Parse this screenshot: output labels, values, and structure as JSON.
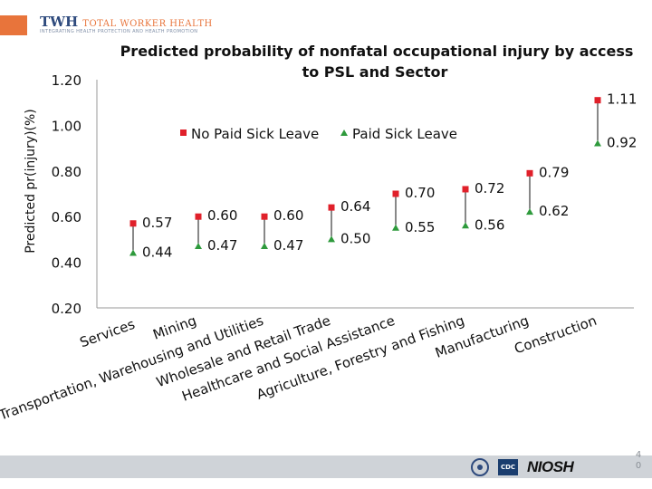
{
  "header": {
    "logo_main": "TWH",
    "logo_title": "TOTAL WORKER HEALTH",
    "logo_tagline": "INTEGRATING HEALTH PROTECTION AND HEALTH PROMOTION",
    "accent_color": "#e8743b",
    "brand_color": "#2e4a7d"
  },
  "footer": {
    "cdc_label": "CDC",
    "niosh_label": "NIOSH",
    "page_number": "4\n0"
  },
  "chart_data": {
    "type": "scatter",
    "title": "Predicted probability of nonfatal occupational injury by access to PSL and Sector",
    "ylabel": "Predicted pr(injury)(%)",
    "xlabel": "",
    "ylim": [
      0.2,
      1.2
    ],
    "yticks": [
      0.2,
      0.4,
      0.6,
      0.8,
      1.0,
      1.2
    ],
    "ytick_labels": [
      "0.20",
      "0.40",
      "0.60",
      "0.80",
      "1.00",
      "1.20"
    ],
    "legend_position": "top",
    "grid": false,
    "categories": [
      "Services",
      "Mining",
      "Transportation, Warehousing and Utilities",
      "Wholesale and Retail Trade",
      "Healthcare and Social Assistance",
      "Agriculture, Forestry and Fishing",
      "Manufacturing",
      "Construction"
    ],
    "series": [
      {
        "name": "No Paid Sick Leave",
        "marker": "square",
        "color": "#e0202a",
        "values": [
          0.57,
          0.6,
          0.6,
          0.64,
          0.7,
          0.72,
          0.79,
          1.11
        ],
        "labels": [
          "0.57",
          "0.60",
          "0.60",
          "0.64",
          "0.70",
          "0.72",
          "0.79",
          "1.11"
        ]
      },
      {
        "name": "Paid Sick Leave",
        "marker": "triangle",
        "color": "#2e9a3c",
        "values": [
          0.44,
          0.47,
          0.47,
          0.5,
          0.55,
          0.56,
          0.62,
          0.92
        ],
        "labels": [
          "0.44",
          "0.47",
          "0.47",
          "0.50",
          "0.55",
          "0.56",
          "0.62",
          "0.92"
        ]
      }
    ]
  }
}
